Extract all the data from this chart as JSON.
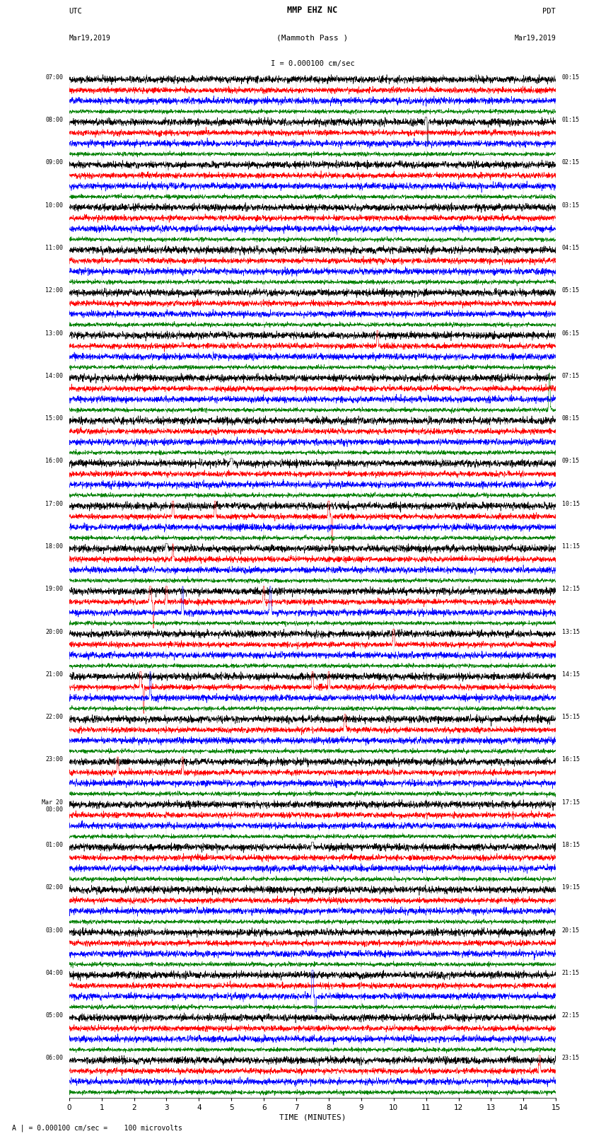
{
  "title_line1": "MMP EHZ NC",
  "title_line2": "(Mammoth Pass )",
  "scale_label": "I = 0.000100 cm/sec",
  "left_label1": "UTC",
  "left_label2": "Mar19,2019",
  "right_label1": "PDT",
  "right_label2": "Mar19,2019",
  "footer": "A | = 0.000100 cm/sec =    100 microvolts",
  "xlabel": "TIME (MINUTES)",
  "left_times": [
    "07:00",
    "08:00",
    "09:00",
    "10:00",
    "11:00",
    "12:00",
    "13:00",
    "14:00",
    "15:00",
    "16:00",
    "17:00",
    "18:00",
    "19:00",
    "20:00",
    "21:00",
    "22:00",
    "23:00",
    "Mar 20\n00:00",
    "01:00",
    "02:00",
    "03:00",
    "04:00",
    "05:00",
    "06:00"
  ],
  "right_times": [
    "00:15",
    "01:15",
    "02:15",
    "03:15",
    "04:15",
    "05:15",
    "06:15",
    "07:15",
    "08:15",
    "09:15",
    "10:15",
    "11:15",
    "12:15",
    "13:15",
    "14:15",
    "15:15",
    "16:15",
    "17:15",
    "18:15",
    "19:15",
    "20:15",
    "21:15",
    "22:15",
    "23:15"
  ],
  "num_rows": 24,
  "traces_per_row": 4,
  "colors": [
    "black",
    "red",
    "blue",
    "green"
  ],
  "bg_color": "white",
  "minutes_per_row": 15,
  "x_ticks": [
    0,
    1,
    2,
    3,
    4,
    5,
    6,
    7,
    8,
    9,
    10,
    11,
    12,
    13,
    14,
    15
  ],
  "noise_scale": 0.04,
  "noise_seed": 42,
  "special_events": [
    [
      1,
      0,
      11.0,
      1.2,
      0.015
    ],
    [
      1,
      0,
      11.05,
      -0.8,
      0.01
    ],
    [
      6,
      1,
      9.5,
      1.0,
      0.015
    ],
    [
      7,
      3,
      14.8,
      1.8,
      0.015
    ],
    [
      9,
      0,
      5.0,
      0.8,
      0.02
    ],
    [
      10,
      1,
      3.2,
      1.5,
      0.015
    ],
    [
      10,
      1,
      4.5,
      1.2,
      0.015
    ],
    [
      10,
      1,
      8.0,
      1.8,
      0.015
    ],
    [
      10,
      1,
      8.1,
      -1.5,
      0.01
    ],
    [
      11,
      0,
      3.0,
      1.0,
      0.02
    ],
    [
      11,
      1,
      3.2,
      0.5,
      0.015
    ],
    [
      12,
      1,
      2.5,
      2.0,
      0.015
    ],
    [
      12,
      1,
      2.6,
      -1.5,
      0.01
    ],
    [
      12,
      1,
      3.0,
      1.5,
      0.015
    ],
    [
      12,
      1,
      6.0,
      1.0,
      0.015
    ],
    [
      12,
      2,
      3.5,
      1.2,
      0.015
    ],
    [
      12,
      2,
      6.2,
      1.0,
      0.02
    ],
    [
      13,
      1,
      10.0,
      1.2,
      0.015
    ],
    [
      14,
      1,
      2.2,
      1.5,
      0.015
    ],
    [
      14,
      1,
      2.3,
      -1.2,
      0.01
    ],
    [
      14,
      1,
      7.5,
      1.2,
      0.015
    ],
    [
      14,
      1,
      8.0,
      1.0,
      0.015
    ],
    [
      14,
      2,
      2.5,
      1.0,
      0.015
    ],
    [
      18,
      0,
      7.5,
      1.5,
      0.015
    ],
    [
      21,
      2,
      7.5,
      2.5,
      0.015
    ],
    [
      21,
      2,
      7.6,
      -2.0,
      0.01
    ],
    [
      23,
      1,
      14.5,
      1.2,
      0.015
    ],
    [
      15,
      1,
      8.5,
      0.8,
      0.02
    ],
    [
      16,
      1,
      1.5,
      1.0,
      0.015
    ],
    [
      16,
      1,
      3.5,
      0.8,
      0.015
    ]
  ]
}
